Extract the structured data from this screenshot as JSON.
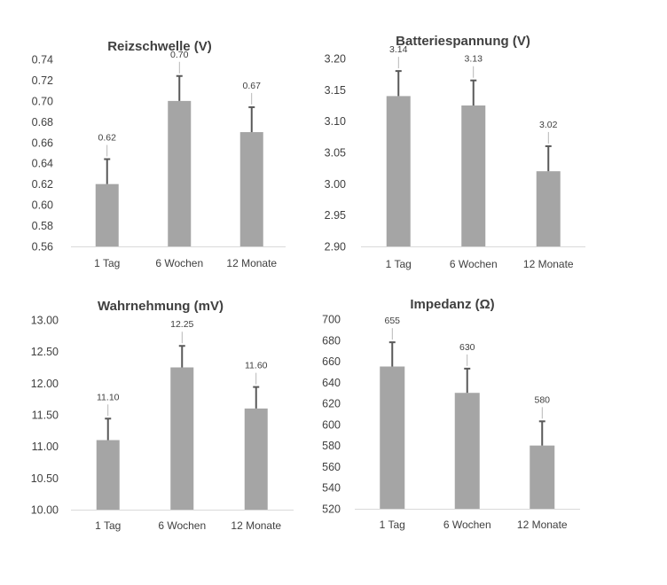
{
  "chart_data": [
    {
      "type": "bar",
      "title": "Reizschwelle (V)",
      "categories": [
        "1 Tag",
        "6 Wochen",
        "12 Monate"
      ],
      "values": [
        0.62,
        0.7,
        0.67
      ],
      "value_labels": [
        "0.62",
        "0.70",
        "0.67"
      ],
      "error_plus": [
        0.024,
        0.024,
        0.024
      ],
      "ylim": [
        0.56,
        0.74
      ],
      "yticks": [
        "0.56",
        "0.58",
        "0.60",
        "0.62",
        "0.64",
        "0.66",
        "0.68",
        "0.70",
        "0.72",
        "0.74"
      ],
      "xlabel": "",
      "ylabel": "",
      "grid": false,
      "color": "#a5a5a5",
      "error_color": "#595959"
    },
    {
      "type": "bar",
      "title": "Batteriespannung (V)",
      "categories": [
        "1 Tag",
        "6 Wochen",
        "12 Monate"
      ],
      "values": [
        3.14,
        3.125,
        3.02
      ],
      "value_labels": [
        "3.14",
        "3.13",
        "3.02"
      ],
      "error_plus": [
        0.04,
        0.04,
        0.04
      ],
      "ylim": [
        2.9,
        3.2
      ],
      "yticks": [
        "2.90",
        "2.95",
        "3.00",
        "3.05",
        "3.10",
        "3.15",
        "3.20"
      ],
      "xlabel": "",
      "ylabel": "",
      "grid": false,
      "color": "#a5a5a5",
      "error_color": "#595959"
    },
    {
      "type": "bar",
      "title": "Wahrnehmung (mV)",
      "categories": [
        "1 Tag",
        "6 Wochen",
        "12 Monate"
      ],
      "values": [
        11.1,
        12.25,
        11.6
      ],
      "value_labels": [
        "11.10",
        "12.25",
        "11.60"
      ],
      "error_plus": [
        0.34,
        0.34,
        0.34
      ],
      "ylim": [
        10.0,
        13.0
      ],
      "yticks": [
        "10.00",
        "10.50",
        "11.00",
        "11.50",
        "12.00",
        "12.50",
        "13.00"
      ],
      "xlabel": "",
      "ylabel": "",
      "grid": false,
      "color": "#a5a5a5",
      "error_color": "#595959"
    },
    {
      "type": "bar",
      "title": "Impedanz (Ω)",
      "categories": [
        "1 Tag",
        "6 Wochen",
        "12 Monate"
      ],
      "values": [
        655,
        630,
        580
      ],
      "value_labels": [
        "655",
        "630",
        "580"
      ],
      "error_plus": [
        23,
        23,
        23
      ],
      "ylim": [
        520,
        700
      ],
      "yticks": [
        "520",
        "540",
        "560",
        "580",
        "600",
        "620",
        "640",
        "660",
        "680",
        "700"
      ],
      "xlabel": "",
      "ylabel": "",
      "grid": false,
      "color": "#a5a5a5",
      "error_color": "#595959"
    }
  ]
}
